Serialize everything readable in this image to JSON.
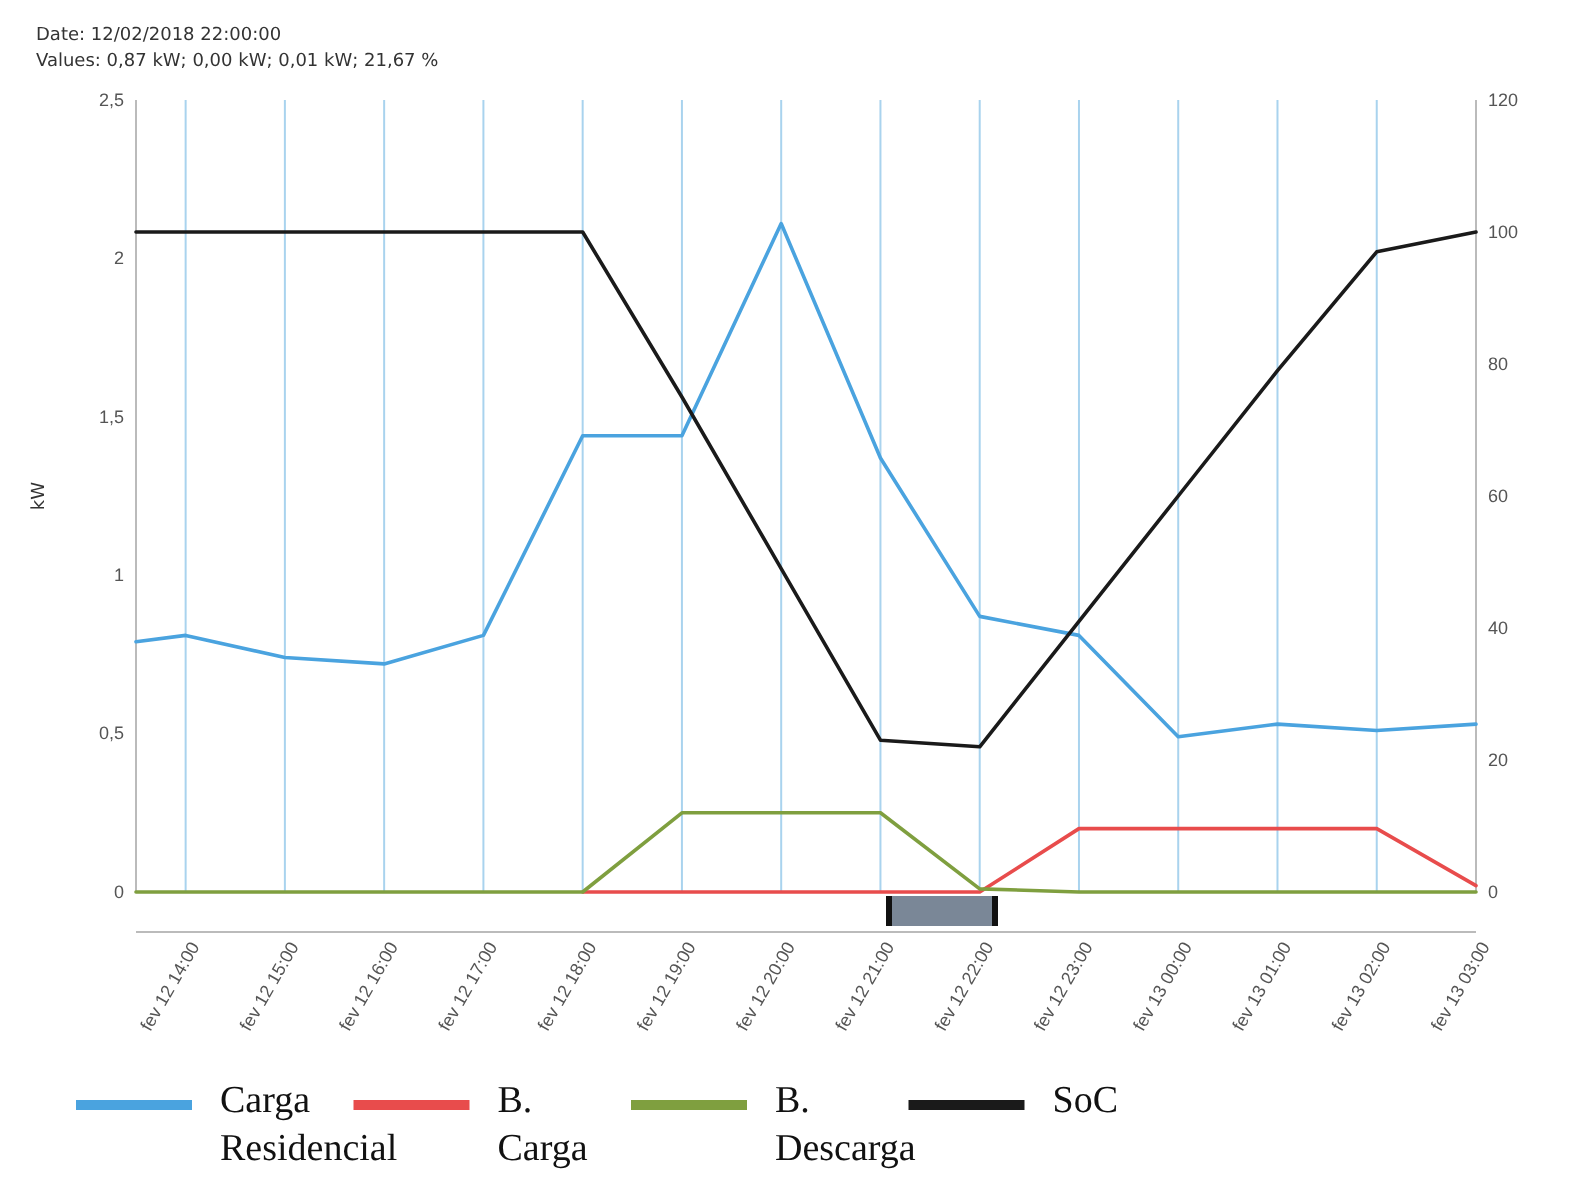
{
  "chart_data": {
    "type": "line",
    "annotations": [
      "Date: 12/02/2018 22:00:00",
      "Values: 0,87 kW; 0,00 kW; 0,01 kW; 21,67 %"
    ],
    "ylabel": "kW",
    "x": [
      "2018-02-12T13:30",
      "2018-02-12T14:00",
      "2018-02-12T15:00",
      "2018-02-12T16:00",
      "2018-02-12T17:00",
      "2018-02-12T18:00",
      "2018-02-12T19:00",
      "2018-02-12T20:00",
      "2018-02-12T21:00",
      "2018-02-12T22:00",
      "2018-02-12T23:00",
      "2018-02-13T00:00",
      "2018-02-13T01:00",
      "2018-02-13T02:00",
      "2018-02-13T03:00"
    ],
    "xlim": [
      "2018-02-12T13:30",
      "2018-02-13T03:00"
    ],
    "xticks": [
      {
        "value": "2018-02-12T14:00",
        "label": "fev 12 14:00"
      },
      {
        "value": "2018-02-12T15:00",
        "label": "fev 12 15:00"
      },
      {
        "value": "2018-02-12T16:00",
        "label": "fev 12 16:00"
      },
      {
        "value": "2018-02-12T17:00",
        "label": "fev 12 17:00"
      },
      {
        "value": "2018-02-12T18:00",
        "label": "fev 12 18:00"
      },
      {
        "value": "2018-02-12T19:00",
        "label": "fev 12 19:00"
      },
      {
        "value": "2018-02-12T20:00",
        "label": "fev 12 20:00"
      },
      {
        "value": "2018-02-12T21:00",
        "label": "fev 12 21:00"
      },
      {
        "value": "2018-02-12T22:00",
        "label": "fev 12 22:00"
      },
      {
        "value": "2018-02-12T23:00",
        "label": "fev 12 23:00"
      },
      {
        "value": "2018-02-13T00:00",
        "label": "fev 13 00:00"
      },
      {
        "value": "2018-02-13T01:00",
        "label": "fev 13 01:00"
      },
      {
        "value": "2018-02-13T02:00",
        "label": "fev 13 02:00"
      },
      {
        "value": "2018-02-13T03:00",
        "label": "fev 13 03:00"
      }
    ],
    "ylim": [
      0,
      2.5
    ],
    "yticks": [
      0,
      {
        "value": 0.5,
        "label": "0,5"
      },
      1,
      {
        "value": 1.5,
        "label": "1,5"
      },
      2,
      {
        "value": 2.5,
        "label": "2,5"
      }
    ],
    "y2lim": [
      0,
      120
    ],
    "y2ticks": [
      0,
      20,
      40,
      60,
      80,
      100,
      120
    ],
    "grid": "x",
    "legend": "bottom",
    "series": [
      {
        "name": "Carga Residencial",
        "color": "#4aa3df",
        "values": [
          0.79,
          0.81,
          0.74,
          0.72,
          0.81,
          1.44,
          1.44,
          2.11,
          1.37,
          0.87,
          0.81,
          0.49,
          0.53,
          0.51,
          0.53
        ]
      },
      {
        "name": "B. Carga",
        "color": "#e84c4c",
        "values": [
          null,
          null,
          null,
          null,
          null,
          0,
          0,
          0,
          0,
          0,
          0.2,
          0.2,
          0.2,
          0.2,
          0.02
        ]
      },
      {
        "name": "B. Descarga",
        "color": "#7f9f3f",
        "values": [
          0,
          0,
          0,
          0,
          0,
          0,
          0.25,
          0.25,
          0.25,
          0.01,
          0,
          0,
          0,
          0,
          0
        ]
      },
      {
        "name": "SoC",
        "color": "#1a1a1a",
        "axis": "y2",
        "values": [
          100,
          100,
          100,
          100,
          100,
          100,
          75,
          49,
          23,
          22,
          41,
          60,
          79,
          97,
          100
        ]
      }
    ]
  }
}
